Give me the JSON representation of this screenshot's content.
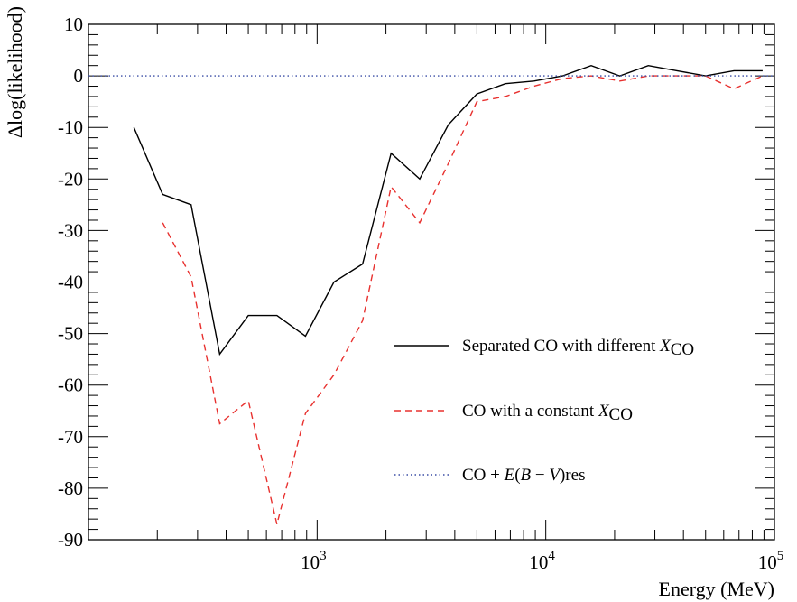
{
  "chart_data": {
    "type": "line",
    "title": "",
    "xlabel": "Energy (MeV)",
    "ylabel": "Δlog(likelihood)",
    "xscale": "log",
    "xlim": [
      100,
      100000
    ],
    "ylim": [
      -90,
      10
    ],
    "grid": false,
    "legend_position": "middle-right",
    "y_ticks": [
      10,
      0,
      -10,
      -20,
      -30,
      -40,
      -50,
      -60,
      -70,
      -80,
      -90
    ],
    "x_ticks": [
      {
        "value": 1000,
        "base": "10",
        "exp": "3"
      },
      {
        "value": 10000,
        "base": "10",
        "exp": "4"
      },
      {
        "value": 100000,
        "base": "10",
        "exp": "5"
      }
    ],
    "series": [
      {
        "name": "Separated CO with different XCO",
        "legend_parts": [
          "Separated CO with different ",
          "X",
          "CO"
        ],
        "color": "#000000",
        "style": "solid",
        "x": [
          158,
          211,
          281,
          375,
          500,
          667,
          889,
          1185,
          1580,
          2107,
          2810,
          3747,
          4996,
          6662,
          8883,
          11845,
          15794,
          21059,
          28080,
          37442,
          49924,
          66568,
          88761
        ],
        "y": [
          -10,
          -23,
          -25,
          -54,
          -46.5,
          -46.5,
          -50.5,
          -40,
          -36.5,
          -15,
          -20,
          -9.5,
          -3.5,
          -1.5,
          -1,
          0,
          2,
          0,
          2,
          1,
          0,
          1,
          1
        ]
      },
      {
        "name": "CO with a constant XCO",
        "legend_parts": [
          "CO with a constant ",
          "X",
          "CO"
        ],
        "color": "#e8312f",
        "style": "dashed",
        "x": [
          211,
          281,
          375,
          500,
          667,
          889,
          1185,
          1580,
          2107,
          2810,
          3747,
          4996,
          6662,
          8883,
          11845,
          15794,
          21059,
          28080,
          37442,
          49924,
          66568,
          88761
        ],
        "y": [
          -28.5,
          -39,
          -67.5,
          -63,
          -87,
          -65.5,
          -58,
          -47.5,
          -21.5,
          -28.5,
          -17,
          -5,
          -4,
          -2,
          -0.5,
          0,
          -1,
          0,
          0,
          0,
          -2.5,
          0
        ]
      },
      {
        "name": "CO + E(B − V)res",
        "legend_parts": [
          "CO + ",
          "E",
          "(",
          "B",
          " − ",
          "V",
          ")res"
        ],
        "color": "#3c4fa6",
        "style": "dotted",
        "x": [
          100,
          100000
        ],
        "y": [
          0,
          0
        ]
      }
    ]
  }
}
